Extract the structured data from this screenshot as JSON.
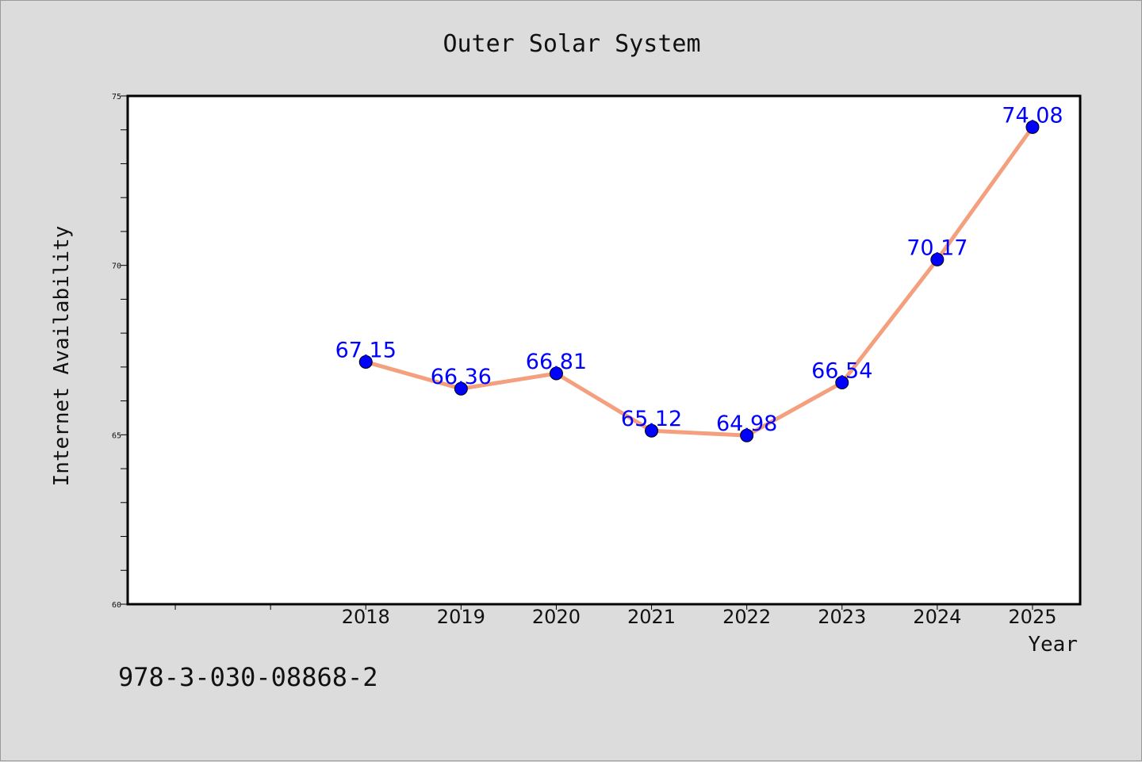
{
  "chart_data": {
    "type": "line",
    "title": "Outer Solar System",
    "xlabel": "Year",
    "ylabel": "Internet Availability",
    "x": [
      "2018",
      "2019",
      "2020",
      "2021",
      "2022",
      "2023",
      "2024",
      "2025"
    ],
    "series": [
      {
        "values": [
          67.15,
          66.36,
          66.81,
          65.12,
          64.98,
          66.54,
          70.17,
          74.08
        ]
      }
    ],
    "data_labels": [
      "67.15",
      "66.36",
      "66.81",
      "65.12",
      "64.98",
      "66.54",
      "70.17",
      "74.08"
    ],
    "xlim": [
      2015.5,
      2025.5
    ],
    "ylim": [
      60,
      75
    ],
    "yticks": [
      60,
      65,
      70,
      75
    ],
    "yticks_minor_step": 1,
    "grid": false,
    "legend": "none",
    "colors": {
      "line": "#f4a07e",
      "marker": "#0000ff",
      "data_label": "#0000ff",
      "background": "#dcdcdc",
      "plot_background": "#ffffff"
    }
  },
  "footnote": "978-3-030-08868-2"
}
